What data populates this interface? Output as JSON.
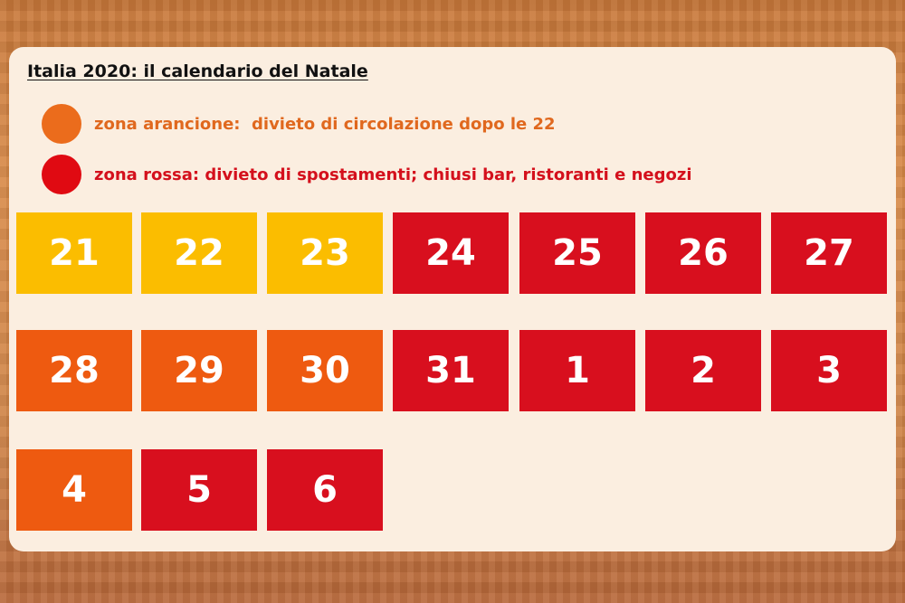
{
  "title": "Italia 2020: il calendario del Natale",
  "colors": {
    "yellow": "#fbbd00",
    "orange": "#ee5a10",
    "red": "#d80f1e",
    "orange_text": "#e0681e",
    "red_text": "#d4101c"
  },
  "legend": [
    {
      "zone": "orange",
      "label": "zona arancione:  divieto di circolazione dopo le 22"
    },
    {
      "zone": "red",
      "label": "zona rossa: divieto di spostamenti; chiusi bar, ristoranti e negozi"
    }
  ],
  "days": [
    {
      "day": "21",
      "zone": "yellow"
    },
    {
      "day": "22",
      "zone": "yellow"
    },
    {
      "day": "23",
      "zone": "yellow"
    },
    {
      "day": "24",
      "zone": "red"
    },
    {
      "day": "25",
      "zone": "red"
    },
    {
      "day": "26",
      "zone": "red"
    },
    {
      "day": "27",
      "zone": "red"
    },
    {
      "day": "28",
      "zone": "orange"
    },
    {
      "day": "29",
      "zone": "orange"
    },
    {
      "day": "30",
      "zone": "orange"
    },
    {
      "day": "31",
      "zone": "red"
    },
    {
      "day": "1",
      "zone": "red"
    },
    {
      "day": "2",
      "zone": "red"
    },
    {
      "day": "3",
      "zone": "red"
    },
    {
      "day": "4",
      "zone": "orange"
    },
    {
      "day": "5",
      "zone": "red"
    },
    {
      "day": "6",
      "zone": "red"
    }
  ]
}
